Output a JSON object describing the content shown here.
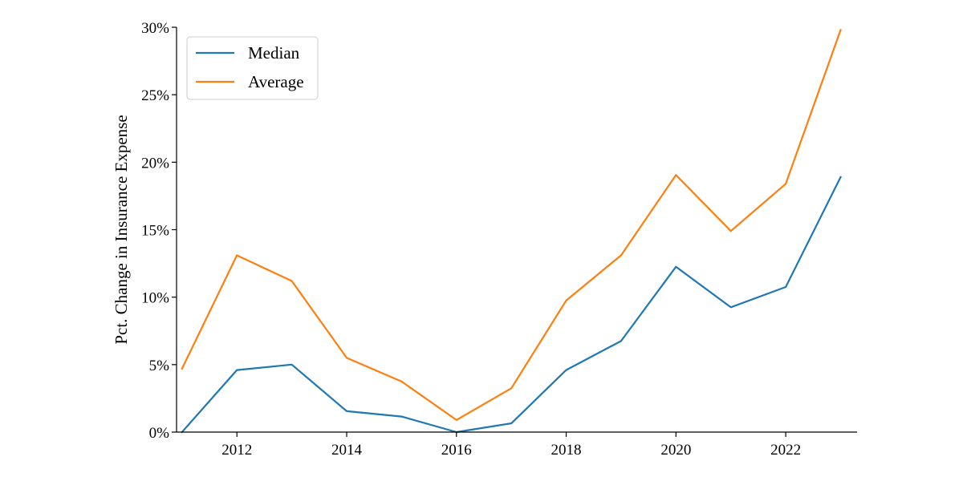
{
  "chart_data": {
    "type": "line",
    "title": "",
    "xlabel": "",
    "ylabel": "Pct. Change in Insurance Expense",
    "x": [
      2011,
      2012,
      2013,
      2014,
      2015,
      2016,
      2017,
      2018,
      2019,
      2020,
      2021,
      2022,
      2023
    ],
    "series": [
      {
        "name": "Median",
        "color": "#1f77b4",
        "values": [
          0.0,
          4.6,
          5.0,
          1.55,
          1.15,
          0.0,
          0.65,
          4.6,
          6.75,
          12.25,
          9.25,
          10.75,
          18.9
        ]
      },
      {
        "name": "Average",
        "color": "#ff7f0e",
        "values": [
          4.7,
          13.1,
          11.2,
          5.5,
          3.75,
          0.9,
          3.25,
          9.75,
          13.1,
          19.05,
          14.9,
          18.4,
          29.8
        ]
      }
    ],
    "xlim": [
      2010.9,
      2023.3
    ],
    "ylim": [
      0,
      30
    ],
    "x_ticks": [
      2012,
      2014,
      2016,
      2018,
      2020,
      2022
    ],
    "x_tick_labels": [
      "2012",
      "2014",
      "2016",
      "2018",
      "2020",
      "2022"
    ],
    "y_ticks": [
      0,
      5,
      10,
      15,
      20,
      25,
      30
    ],
    "y_tick_labels": [
      "0%",
      "5%",
      "10%",
      "15%",
      "20%",
      "25%",
      "30%"
    ],
    "grid": false,
    "legend_position": "top-left",
    "spines": "left-and-bottom-only"
  }
}
